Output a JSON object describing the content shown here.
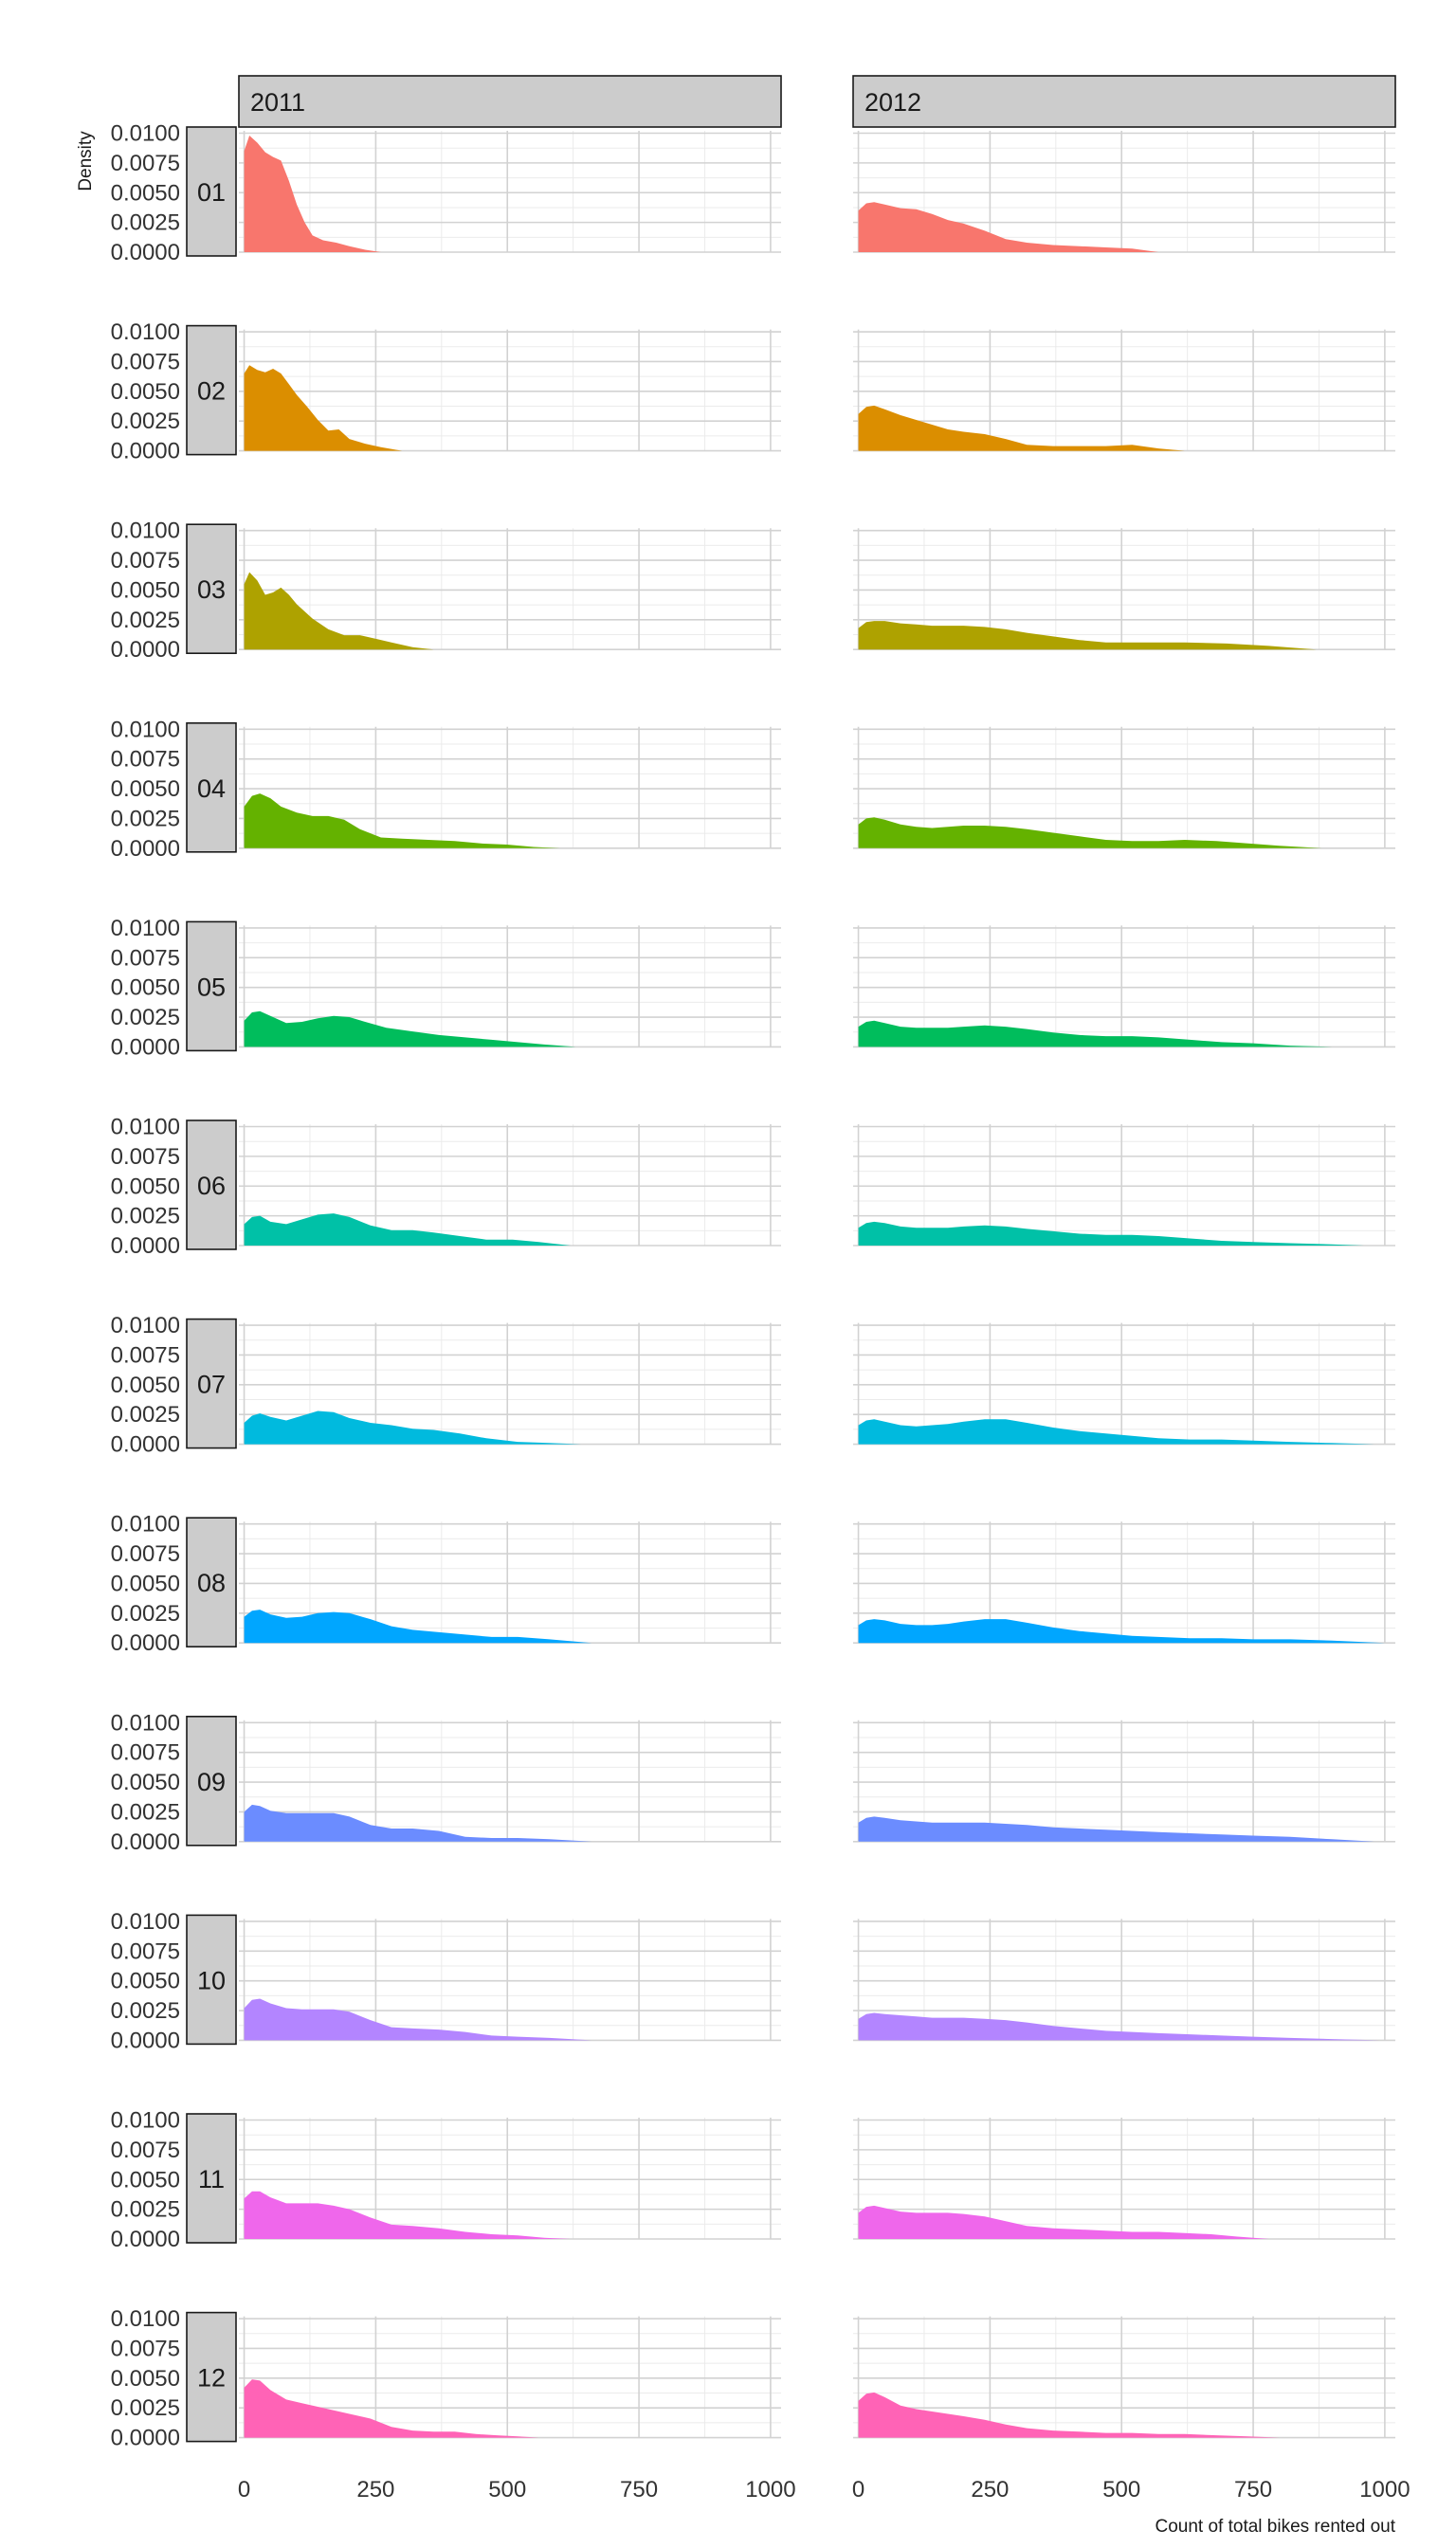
{
  "chart_data": {
    "type": "area",
    "xlabel": "Count of total bikes rented out",
    "ylabel": "Density",
    "xlim": [
      -10,
      1020
    ],
    "ylim": [
      0,
      0.0102
    ],
    "x_ticks": [
      0,
      250,
      500,
      750,
      1000
    ],
    "x_tick_labels": [
      "0",
      "250",
      "500",
      "750",
      "1000"
    ],
    "y_ticks": [
      0,
      0.0025,
      0.005,
      0.0075,
      0.01
    ],
    "y_tick_labels": [
      "0.0000",
      "0.0025",
      "0.0050",
      "0.0075",
      "0.0100"
    ],
    "grid": true,
    "legend": "none",
    "columns": [
      "2011",
      "2012"
    ],
    "rows": [
      "01",
      "02",
      "03",
      "04",
      "05",
      "06",
      "07",
      "08",
      "09",
      "10",
      "11",
      "12"
    ],
    "colors": [
      "#F8766D",
      "#DB8E00",
      "#AEA200",
      "#64B200",
      "#00BD5C",
      "#00C1A7",
      "#00BADE",
      "#00A6FF",
      "#6B8CFF",
      "#B385FF",
      "#EF67EB",
      "#FF63B6"
    ],
    "panels": [
      [
        {
          "x": [
            0,
            10,
            25,
            40,
            55,
            70,
            85,
            100,
            115,
            130,
            150,
            175,
            200,
            230,
            260
          ],
          "y": [
            0.0085,
            0.0098,
            0.0092,
            0.0084,
            0.008,
            0.0077,
            0.006,
            0.004,
            0.0025,
            0.0014,
            0.001,
            0.0008,
            0.0005,
            0.0002,
            0.0
          ]
        },
        {
          "x": [
            0,
            10,
            25,
            40,
            55,
            70,
            85,
            100,
            120,
            140,
            160,
            180,
            200,
            230,
            260,
            300
          ],
          "y": [
            0.0065,
            0.0072,
            0.0068,
            0.0066,
            0.0069,
            0.0065,
            0.0056,
            0.0047,
            0.0037,
            0.0026,
            0.0017,
            0.0018,
            0.001,
            0.0006,
            0.0003,
            0.0
          ]
        },
        {
          "x": [
            0,
            10,
            25,
            40,
            55,
            70,
            85,
            100,
            130,
            160,
            190,
            220,
            250,
            280,
            320,
            360
          ],
          "y": [
            0.0055,
            0.0065,
            0.0058,
            0.0046,
            0.0048,
            0.0052,
            0.0046,
            0.0038,
            0.0026,
            0.0017,
            0.0012,
            0.0012,
            0.0009,
            0.0006,
            0.0002,
            0.0
          ]
        },
        {
          "x": [
            0,
            15,
            30,
            50,
            70,
            100,
            130,
            160,
            190,
            220,
            260,
            300,
            350,
            400,
            450,
            500,
            550,
            600
          ],
          "y": [
            0.0035,
            0.0044,
            0.0046,
            0.0042,
            0.0035,
            0.003,
            0.0027,
            0.0027,
            0.0024,
            0.0016,
            0.0009,
            0.0008,
            0.0007,
            0.0006,
            0.0004,
            0.0003,
            0.0001,
            0.0
          ]
        },
        {
          "x": [
            0,
            15,
            30,
            50,
            80,
            110,
            140,
            170,
            200,
            230,
            270,
            320,
            370,
            420,
            470,
            520,
            570,
            630
          ],
          "y": [
            0.0022,
            0.0029,
            0.003,
            0.0026,
            0.002,
            0.0021,
            0.0024,
            0.0026,
            0.0025,
            0.0021,
            0.0016,
            0.0013,
            0.001,
            0.0008,
            0.0006,
            0.0004,
            0.0002,
            0.0
          ]
        },
        {
          "x": [
            0,
            15,
            30,
            50,
            80,
            110,
            140,
            170,
            200,
            240,
            280,
            320,
            360,
            410,
            460,
            510,
            560,
            620
          ],
          "y": [
            0.0018,
            0.0024,
            0.0025,
            0.002,
            0.0018,
            0.0022,
            0.0026,
            0.0027,
            0.0024,
            0.0017,
            0.0013,
            0.0013,
            0.0011,
            0.0008,
            0.0005,
            0.0005,
            0.0003,
            0.0
          ]
        },
        {
          "x": [
            0,
            15,
            30,
            50,
            80,
            110,
            140,
            170,
            200,
            240,
            280,
            320,
            360,
            410,
            460,
            520,
            580,
            640
          ],
          "y": [
            0.0018,
            0.0024,
            0.0026,
            0.0023,
            0.002,
            0.0024,
            0.0028,
            0.0027,
            0.0022,
            0.0018,
            0.0016,
            0.0013,
            0.0012,
            0.0009,
            0.0005,
            0.0002,
            0.0001,
            0.0
          ]
        },
        {
          "x": [
            0,
            15,
            30,
            50,
            80,
            110,
            140,
            170,
            200,
            240,
            280,
            320,
            370,
            420,
            470,
            520,
            580,
            660
          ],
          "y": [
            0.0022,
            0.0027,
            0.0028,
            0.0024,
            0.0021,
            0.0022,
            0.0025,
            0.0026,
            0.0025,
            0.002,
            0.0014,
            0.0011,
            0.0009,
            0.0007,
            0.0005,
            0.0005,
            0.0003,
            0.0
          ]
        },
        {
          "x": [
            0,
            15,
            30,
            50,
            80,
            110,
            140,
            170,
            200,
            240,
            280,
            320,
            370,
            420,
            470,
            520,
            580,
            660
          ],
          "y": [
            0.0025,
            0.0031,
            0.003,
            0.0026,
            0.0024,
            0.0024,
            0.0024,
            0.0024,
            0.0021,
            0.0014,
            0.0011,
            0.0011,
            0.0009,
            0.0004,
            0.0003,
            0.0003,
            0.0002,
            0.0
          ]
        },
        {
          "x": [
            0,
            15,
            30,
            50,
            80,
            110,
            140,
            170,
            200,
            240,
            280,
            320,
            370,
            420,
            470,
            520,
            580,
            660
          ],
          "y": [
            0.0027,
            0.0034,
            0.0035,
            0.0031,
            0.0027,
            0.0026,
            0.0026,
            0.0026,
            0.0024,
            0.0017,
            0.0011,
            0.001,
            0.0009,
            0.0007,
            0.0004,
            0.0003,
            0.0002,
            0.0
          ]
        },
        {
          "x": [
            0,
            15,
            30,
            50,
            80,
            110,
            140,
            170,
            200,
            240,
            280,
            320,
            370,
            420,
            470,
            520,
            570,
            620
          ],
          "y": [
            0.0034,
            0.004,
            0.004,
            0.0035,
            0.003,
            0.003,
            0.003,
            0.0028,
            0.0025,
            0.0018,
            0.0012,
            0.0011,
            0.0009,
            0.0006,
            0.0004,
            0.0003,
            0.0001,
            0.0
          ]
        },
        {
          "x": [
            0,
            15,
            30,
            50,
            80,
            110,
            140,
            170,
            200,
            240,
            280,
            320,
            360,
            400,
            440,
            480,
            520,
            560
          ],
          "y": [
            0.0042,
            0.0049,
            0.0048,
            0.004,
            0.0032,
            0.0029,
            0.0026,
            0.0023,
            0.002,
            0.0016,
            0.0009,
            0.0006,
            0.0005,
            0.0005,
            0.0003,
            0.0002,
            0.0001,
            0.0
          ]
        }
      ],
      [
        {
          "x": [
            0,
            15,
            30,
            50,
            80,
            110,
            140,
            170,
            200,
            240,
            280,
            320,
            370,
            420,
            470,
            520,
            570
          ],
          "y": [
            0.0035,
            0.0041,
            0.0042,
            0.004,
            0.0037,
            0.0036,
            0.0032,
            0.0027,
            0.0024,
            0.0018,
            0.0011,
            0.0008,
            0.0006,
            0.0005,
            0.0004,
            0.0003,
            0.0
          ]
        },
        {
          "x": [
            0,
            15,
            30,
            50,
            80,
            110,
            140,
            170,
            200,
            240,
            280,
            320,
            370,
            420,
            470,
            520,
            570,
            620
          ],
          "y": [
            0.0031,
            0.0037,
            0.0038,
            0.0035,
            0.003,
            0.0026,
            0.0022,
            0.0018,
            0.0016,
            0.0014,
            0.001,
            0.0005,
            0.0004,
            0.0004,
            0.0004,
            0.0005,
            0.0002,
            0.0
          ]
        },
        {
          "x": [
            0,
            15,
            30,
            50,
            80,
            110,
            140,
            170,
            200,
            240,
            280,
            320,
            370,
            420,
            470,
            520,
            570,
            620,
            700,
            780,
            870
          ],
          "y": [
            0.0018,
            0.0023,
            0.0024,
            0.0024,
            0.0022,
            0.0021,
            0.002,
            0.002,
            0.002,
            0.0019,
            0.0017,
            0.0014,
            0.0011,
            0.0008,
            0.0006,
            0.0006,
            0.0006,
            0.0006,
            0.0005,
            0.0003,
            0.0
          ]
        },
        {
          "x": [
            0,
            15,
            30,
            50,
            80,
            110,
            140,
            170,
            200,
            240,
            280,
            320,
            370,
            420,
            470,
            520,
            570,
            620,
            680,
            740,
            800,
            880
          ],
          "y": [
            0.002,
            0.0025,
            0.0026,
            0.0024,
            0.002,
            0.0018,
            0.0017,
            0.0018,
            0.0019,
            0.0019,
            0.0018,
            0.0016,
            0.0013,
            0.001,
            0.0007,
            0.0006,
            0.0006,
            0.0007,
            0.0006,
            0.0004,
            0.0002,
            0.0
          ]
        },
        {
          "x": [
            0,
            15,
            30,
            50,
            80,
            110,
            140,
            170,
            200,
            240,
            280,
            320,
            370,
            420,
            470,
            520,
            570,
            630,
            690,
            750,
            820,
            900
          ],
          "y": [
            0.0017,
            0.0021,
            0.0022,
            0.002,
            0.0017,
            0.0016,
            0.0016,
            0.0016,
            0.0017,
            0.0018,
            0.0017,
            0.0015,
            0.0012,
            0.001,
            0.0009,
            0.0009,
            0.0008,
            0.0006,
            0.0004,
            0.0003,
            0.0001,
            0.0
          ]
        },
        {
          "x": [
            0,
            15,
            30,
            50,
            80,
            110,
            140,
            170,
            200,
            240,
            280,
            320,
            370,
            420,
            470,
            520,
            570,
            630,
            690,
            750,
            820,
            900,
            960
          ],
          "y": [
            0.0015,
            0.0019,
            0.002,
            0.0019,
            0.0016,
            0.0015,
            0.0015,
            0.0015,
            0.0016,
            0.0017,
            0.0016,
            0.0014,
            0.0012,
            0.001,
            0.0009,
            0.0009,
            0.0008,
            0.0006,
            0.0004,
            0.0003,
            0.0002,
            0.0001,
            0.0
          ]
        },
        {
          "x": [
            0,
            15,
            30,
            50,
            80,
            110,
            140,
            170,
            200,
            240,
            280,
            320,
            370,
            420,
            470,
            520,
            570,
            630,
            690,
            750,
            820,
            900,
            980
          ],
          "y": [
            0.0016,
            0.002,
            0.0021,
            0.0019,
            0.0016,
            0.0015,
            0.0016,
            0.0017,
            0.0019,
            0.0021,
            0.0021,
            0.0018,
            0.0014,
            0.0011,
            0.0009,
            0.0007,
            0.0005,
            0.0004,
            0.0004,
            0.0003,
            0.0002,
            0.0001,
            0.0
          ]
        },
        {
          "x": [
            0,
            15,
            30,
            50,
            80,
            110,
            140,
            170,
            200,
            240,
            280,
            320,
            370,
            420,
            470,
            520,
            570,
            630,
            690,
            750,
            820,
            900,
            1000
          ],
          "y": [
            0.0015,
            0.0019,
            0.002,
            0.0019,
            0.0016,
            0.0015,
            0.0015,
            0.0016,
            0.0018,
            0.002,
            0.002,
            0.0017,
            0.0013,
            0.001,
            0.0008,
            0.0006,
            0.0005,
            0.0004,
            0.0004,
            0.0003,
            0.0003,
            0.0002,
            0.0
          ]
        },
        {
          "x": [
            0,
            15,
            30,
            50,
            80,
            110,
            140,
            170,
            200,
            240,
            280,
            320,
            370,
            420,
            470,
            520,
            570,
            630,
            690,
            750,
            820,
            900,
            980
          ],
          "y": [
            0.0016,
            0.002,
            0.0021,
            0.002,
            0.0018,
            0.0017,
            0.0016,
            0.0016,
            0.0016,
            0.0016,
            0.0015,
            0.0014,
            0.0012,
            0.0011,
            0.001,
            0.0009,
            0.0008,
            0.0007,
            0.0006,
            0.0005,
            0.0004,
            0.0002,
            0.0
          ]
        },
        {
          "x": [
            0,
            15,
            30,
            50,
            80,
            110,
            140,
            170,
            200,
            240,
            280,
            320,
            370,
            420,
            470,
            520,
            570,
            630,
            690,
            750,
            820,
            900,
            990
          ],
          "y": [
            0.0018,
            0.0022,
            0.0023,
            0.0022,
            0.0021,
            0.002,
            0.0019,
            0.0019,
            0.0019,
            0.0018,
            0.0017,
            0.0015,
            0.0012,
            0.001,
            0.0008,
            0.0007,
            0.0006,
            0.0005,
            0.0004,
            0.0003,
            0.0002,
            0.0001,
            0.0
          ]
        },
        {
          "x": [
            0,
            15,
            30,
            50,
            80,
            110,
            140,
            170,
            200,
            240,
            280,
            320,
            370,
            420,
            470,
            520,
            570,
            620,
            670,
            720,
            780
          ],
          "y": [
            0.0022,
            0.0027,
            0.0028,
            0.0026,
            0.0023,
            0.0022,
            0.0022,
            0.0022,
            0.0021,
            0.0019,
            0.0015,
            0.0011,
            0.0009,
            0.0008,
            0.0007,
            0.0006,
            0.0006,
            0.0005,
            0.0004,
            0.0002,
            0.0
          ]
        },
        {
          "x": [
            0,
            15,
            30,
            50,
            80,
            110,
            140,
            170,
            200,
            240,
            280,
            320,
            370,
            420,
            470,
            520,
            570,
            620,
            680,
            740,
            800
          ],
          "y": [
            0.0031,
            0.0037,
            0.0038,
            0.0034,
            0.0027,
            0.0024,
            0.0022,
            0.002,
            0.0018,
            0.0015,
            0.0011,
            0.0008,
            0.0006,
            0.0005,
            0.0004,
            0.0004,
            0.0003,
            0.0003,
            0.0002,
            0.0001,
            0.0
          ]
        }
      ]
    ]
  }
}
